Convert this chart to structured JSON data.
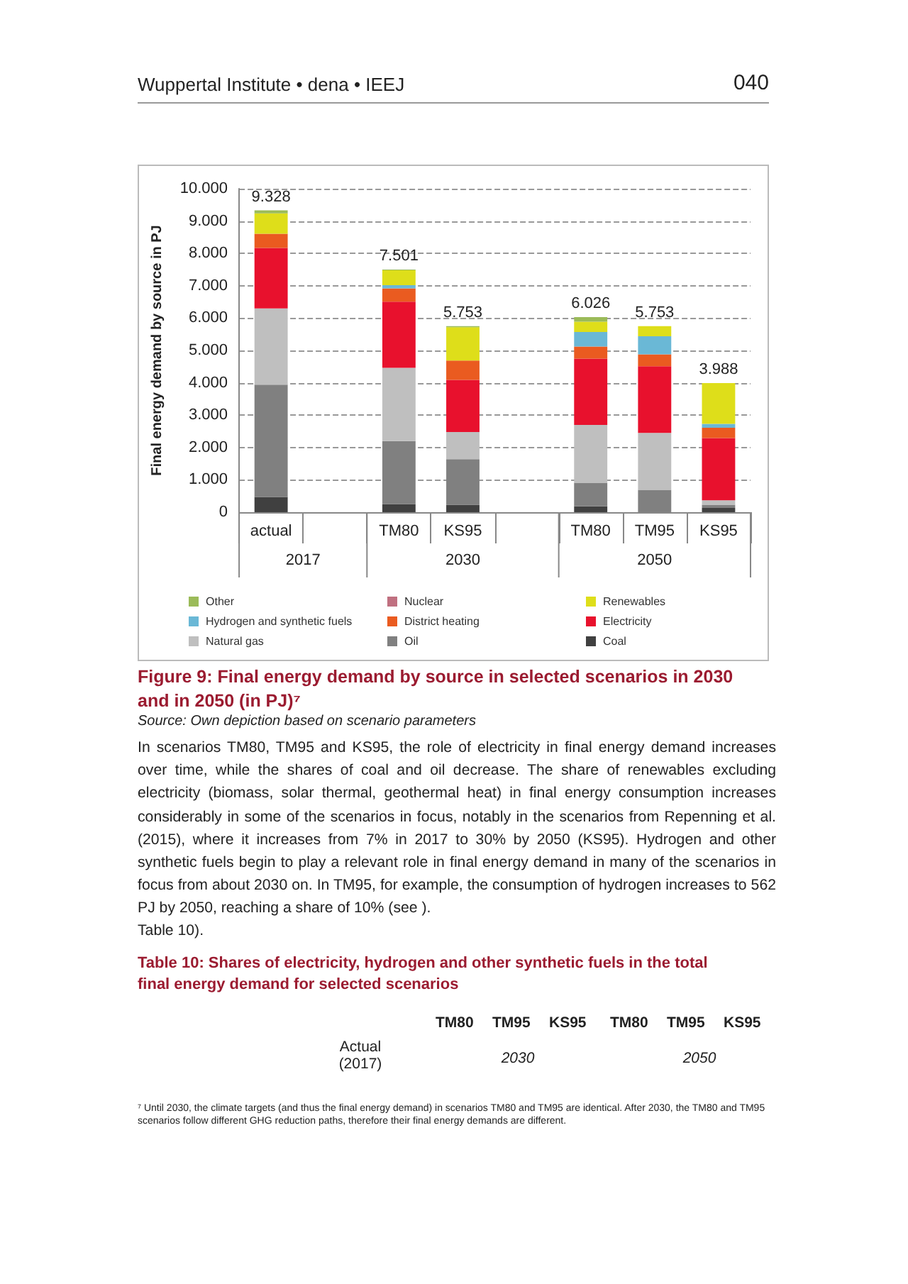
{
  "chart_data": {
    "type": "bar",
    "stacked": true,
    "title": "Figure 9: Final energy demand by source in selected scenarios in 2030 and in 2050 (in PJ)⁷",
    "ylabel": "Final energy demand by source in PJ",
    "categories": [
      "actual",
      null,
      "TM80",
      "KS95",
      null,
      "TM80",
      "TM95",
      "KS95"
    ],
    "series": [
      {
        "name": "Coal",
        "color": "#404040",
        "values": [
          470,
          null,
          250,
          230,
          null,
          180,
          0,
          130
        ]
      },
      {
        "name": "Oil",
        "color": "#808080",
        "values": [
          3470,
          null,
          1950,
          1410,
          null,
          730,
          690,
          100
        ]
      },
      {
        "name": "Natural gas",
        "color": "#bfbfbf",
        "values": [
          2360,
          null,
          2260,
          840,
          null,
          1790,
          1760,
          140
        ]
      },
      {
        "name": "Electricity",
        "color": "#e8112d",
        "values": [
          1870,
          null,
          2050,
          1610,
          null,
          2050,
          2060,
          1920
        ]
      },
      {
        "name": "District heating",
        "color": "#ea5b20",
        "values": [
          440,
          null,
          410,
          600,
          null,
          370,
          370,
          320
        ]
      },
      {
        "name": "Hydrogen and synthetic fuels",
        "color": "#6ab8d6",
        "values": [
          0,
          null,
          100,
          0,
          null,
          450,
          560,
          120
        ]
      },
      {
        "name": "Renewables",
        "color": "#dede1a",
        "values": [
          630,
          null,
          460,
          1030,
          null,
          320,
          310,
          1260
        ]
      },
      {
        "name": "Nuclear",
        "color": "#c07080",
        "values": [
          0,
          null,
          0,
          0,
          null,
          0,
          0,
          0
        ]
      },
      {
        "name": "Other",
        "color": "#9bbb59",
        "values": [
          90,
          null,
          20,
          30,
          null,
          140,
          null,
          0
        ]
      }
    ],
    "totals": [
      "9.328",
      null,
      "7.501",
      "5.753",
      null,
      "6.026",
      "5.753",
      "3.988"
    ],
    "ylim": [
      0,
      10000
    ],
    "yticks": [
      {
        "value": 0,
        "label": "0"
      },
      {
        "value": 1000,
        "label": "1.000"
      },
      {
        "value": 2000,
        "label": "2.000"
      },
      {
        "value": 3000,
        "label": "3.000"
      },
      {
        "value": 4000,
        "label": "4.000"
      },
      {
        "value": 5000,
        "label": "5.000"
      },
      {
        "value": 6000,
        "label": "6.000"
      },
      {
        "value": 7000,
        "label": "7.000"
      },
      {
        "value": 8000,
        "label": "8.000"
      },
      {
        "value": 9000,
        "label": "9.000"
      },
      {
        "value": 10000,
        "label": "10.000"
      }
    ],
    "grid": "y",
    "legend": "bottom",
    "annotations": [
      "2017",
      "2030",
      "2050",
      "Wuppertal Institute • dena • IEEJ",
      "040",
      "Source: Own depiction based on scenario parameters",
      "In scenarios TM80, TM95 and KS95, the role of electricity in final energy demand increases over time, while the shares of coal and oil decrease. The share of renewables excluding electricity (biomass, solar thermal, geothermal heat) in final energy consumption increases considerably in some of the scenarios in focus, notably in the scenarios from Repenning et al. (2015), where it increases from 7% in 2017 to 30% by 2050 (KS95). Hydrogen and other synthetic fuels begin to play a relevant role in final energy demand in many of the scenarios in focus from about 2030 on. In TM95, for example, the consumption of hydrogen increases to 562 PJ by 2050, reaching a share of 10% (see ).",
      "Table 10).",
      "Table 10: Shares of electricity, hydrogen and other synthetic fuels in the total final energy demand for selected scenarios",
      "TM80",
      "TM95",
      "KS95",
      "TM80",
      "TM95",
      "KS95",
      "Actual (2017)",
      "2030",
      "2050",
      "⁷ Until 2030, the climate targets (and thus the final energy demand) in scenarios TM80 and TM95 are identical. After 2030, the TM80 and TM95 scenarios follow different GHG reduction paths, therefore their final energy demands are different."
    ]
  }
}
